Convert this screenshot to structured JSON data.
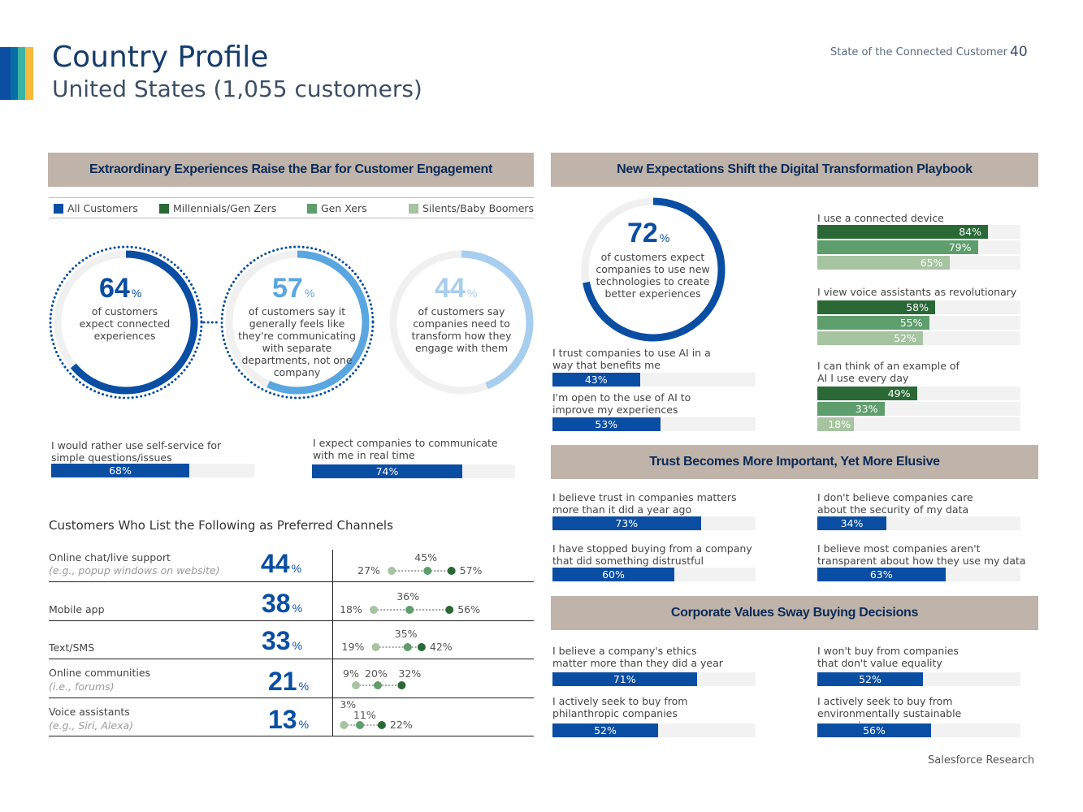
{
  "header": {
    "title": "Country Profile",
    "subtitle": "United States (1,055 customers)",
    "report_name": "State of the Connected Customer",
    "page_number": "40"
  },
  "footer": "Salesforce Research",
  "colors": {
    "all_customers": "#0a4ea3",
    "millennials": "#2a6936",
    "gen_x": "#5e9d6c",
    "boomers": "#a6c4a0",
    "header_bg": "#bfb3aa",
    "track": "#f3f2f2"
  },
  "sections": {
    "engagement": "Extraordinary Experiences Raise the Bar for Customer Engagement",
    "digital": "New Expectations Shift the Digital Transformation Playbook",
    "trust": "Trust Becomes More Important, Yet More Elusive",
    "values": "Corporate Values Sway Buying Decisions"
  },
  "legend": [
    {
      "label": "All Customers",
      "color": "#0a4ea3"
    },
    {
      "label": "Millennials/Gen Zers",
      "color": "#2a6936"
    },
    {
      "label": "Gen Xers",
      "color": "#5e9d6c"
    },
    {
      "label": "Silents/Baby Boomers",
      "color": "#a6c4a0"
    }
  ],
  "rings": [
    {
      "value": "64",
      "pct": "%",
      "text": "of customers expect connected experiences"
    },
    {
      "value": "57",
      "pct": "%",
      "text": "of customers say it generally feels like they're communicating with separate departments, not one company"
    },
    {
      "value": "44",
      "pct": "%",
      "text": "of customers say companies need to transform how they engage with them"
    }
  ],
  "engagement_bars": [
    {
      "label": "I would rather use self-service for simple questions/issues",
      "value": 68,
      "text": "68%"
    },
    {
      "label": "I expect companies to communicate with me in real time",
      "value": 74,
      "text": "74%"
    }
  ],
  "digital": {
    "ring": {
      "value": "72",
      "pct": "%",
      "text": "of customers expect companies to use new technologies to create better experiences"
    },
    "all_bars": [
      {
        "label": "I trust companies to use AI in a way that benefits me",
        "value": 43,
        "text": "43%"
      },
      {
        "label": "I'm open to the use of AI to improve my experiences",
        "value": 53,
        "text": "53%"
      }
    ],
    "generation_bars": [
      {
        "label": "I use a connected device",
        "values": [
          84,
          79,
          65
        ],
        "texts": [
          "84%",
          "79%",
          "65%"
        ]
      },
      {
        "label": "I view voice assistants as revolutionary",
        "values": [
          58,
          55,
          52
        ],
        "texts": [
          "58%",
          "55%",
          "52%"
        ]
      },
      {
        "label": "I can think of an example of AI I use every day",
        "values": [
          49,
          33,
          18
        ],
        "texts": [
          "49%",
          "33%",
          "18%"
        ]
      }
    ]
  },
  "trust_bars": [
    {
      "label": "I believe trust in companies matters more than it did a year ago",
      "value": 73,
      "text": "73%"
    },
    {
      "label": "I don't believe companies care about the security of my data",
      "value": 34,
      "text": "34%"
    },
    {
      "label": "I have stopped buying from a company that did something distrustful",
      "value": 60,
      "text": "60%"
    },
    {
      "label": "I believe most companies aren't transparent about how they use my data",
      "value": 63,
      "text": "63%"
    }
  ],
  "values_bars": [
    {
      "label": "I believe a company's ethics matter more than they did a year ago",
      "value": 71,
      "text": "71%"
    },
    {
      "label": "I won't buy from companies that don't value equality",
      "value": 52,
      "text": "52%"
    },
    {
      "label": "I actively seek to buy from philanthropic companies",
      "value": 52,
      "text": "52%"
    },
    {
      "label": "I actively seek to buy from environmentally sustainable companies",
      "value": 56,
      "text": "56%"
    }
  ],
  "channels": {
    "title": "Customers Who List the Following as Preferred Channels",
    "rows": [
      {
        "name": "Online chat/live support",
        "example": "(e.g., popup windows on website)",
        "value": "44",
        "pct": "%",
        "boomers": 27,
        "genx": 45,
        "millennials": 57,
        "boomers_text": "27%",
        "genx_text": "45%",
        "millennials_text": "57%"
      },
      {
        "name": "Mobile app",
        "example": "",
        "value": "38",
        "pct": "%",
        "boomers": 18,
        "genx": 36,
        "millennials": 56,
        "boomers_text": "18%",
        "genx_text": "36%",
        "millennials_text": "56%"
      },
      {
        "name": "Text/SMS",
        "example": "",
        "value": "33",
        "pct": "%",
        "boomers": 19,
        "genx": 35,
        "millennials": 42,
        "boomers_text": "19%",
        "genx_text": "35%",
        "millennials_text": "42%"
      },
      {
        "name": "Online communities",
        "example": "(i.e., forums)",
        "value": "21",
        "pct": "%",
        "boomers": 9,
        "genx": 20,
        "millennials": 32,
        "boomers_text": "9%",
        "genx_text": "20%",
        "millennials_text": "32%"
      },
      {
        "name": "Voice assistants",
        "example": "(e.g., Siri, Alexa)",
        "value": "13",
        "pct": "%",
        "boomers": 3,
        "genx": 11,
        "millennials": 22,
        "boomers_text": "3%",
        "genx_text": "11%",
        "millennials_text": "22%"
      }
    ]
  },
  "chart_data": [
    {
      "type": "pie",
      "values": [
        64
      ],
      "text": "of customers expect connected experiences"
    },
    {
      "type": "pie",
      "values": [
        57
      ]
    },
    {
      "type": "pie",
      "values": [
        44
      ]
    },
    {
      "type": "pie",
      "values": [
        72
      ]
    },
    {
      "type": "bar",
      "categories": [
        "I would rather use self-service for simple questions/issues",
        "I expect companies to communicate with me in real time"
      ],
      "values": [
        68,
        74
      ]
    },
    {
      "type": "bar",
      "categories": [
        "I use a connected device",
        "I view voice assistants as revolutionary",
        "I can think of an example of AI I use every day"
      ],
      "series": [
        {
          "name": "Millennials/Gen Zers",
          "values": [
            84,
            58,
            49
          ]
        },
        {
          "name": "Gen Xers",
          "values": [
            79,
            55,
            33
          ]
        },
        {
          "name": "Silents/Baby Boomers",
          "values": [
            65,
            52,
            18
          ]
        }
      ]
    },
    {
      "type": "scatter",
      "categories": [
        "Online chat/live support",
        "Mobile app",
        "Text/SMS",
        "Online communities",
        "Voice assistants"
      ],
      "series": [
        {
          "name": "All Customers",
          "values": [
            44,
            38,
            33,
            21,
            13
          ]
        },
        {
          "name": "Silents/Baby Boomers",
          "values": [
            27,
            18,
            19,
            9,
            3
          ]
        },
        {
          "name": "Gen Xers",
          "values": [
            45,
            36,
            35,
            20,
            11
          ]
        },
        {
          "name": "Millennials/Gen Zers",
          "values": [
            57,
            56,
            42,
            32,
            22
          ]
        }
      ]
    }
  ]
}
